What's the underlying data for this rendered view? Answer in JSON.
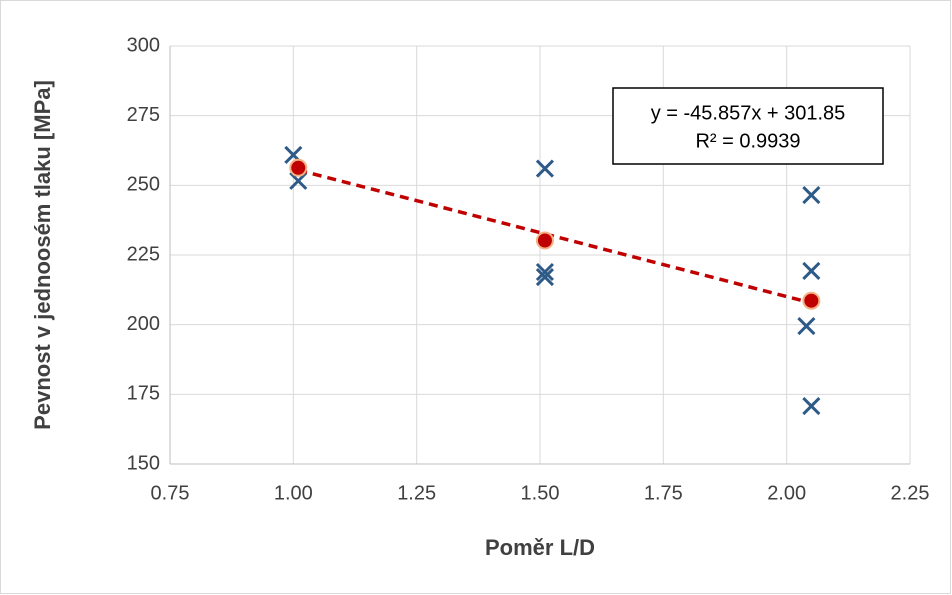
{
  "chart_data": {
    "type": "scatter",
    "xlabel": "Poměr L/D",
    "ylabel": "Pevnost v jednoosém tlaku [MPa]",
    "xlim": [
      0.75,
      2.25
    ],
    "xticks": [
      {
        "value": 0.75,
        "label": "0.75"
      },
      {
        "value": 1,
        "label": "1.00"
      },
      {
        "value": 1.25,
        "label": "1.25"
      },
      {
        "value": 1.5,
        "label": "1.50"
      },
      {
        "value": 1.75,
        "label": "1.75"
      },
      {
        "value": 2,
        "label": "2.00"
      },
      {
        "value": 2.25,
        "label": "2.25"
      }
    ],
    "ylim": [
      150,
      300
    ],
    "yticks": [
      150,
      175,
      200,
      225,
      250,
      275,
      300
    ],
    "grid": true,
    "series": [
      {
        "marker": "x",
        "color": "#2e5a88",
        "x": [
          1.0,
          1.01,
          1.51,
          1.51,
          1.51,
          2.05,
          2.05,
          2.04,
          2.05
        ],
        "values": [
          260.9,
          251.6,
          256.0,
          218.9,
          217.1,
          246.5,
          219.3,
          199.5,
          170.8
        ]
      },
      {
        "marker": "circle",
        "color": "#c00000",
        "edge": "#f4b183",
        "x": [
          1.01,
          1.51,
          2.05
        ],
        "values": [
          256.3,
          230.2,
          208.6
        ]
      }
    ],
    "trendline": {
      "color": "#c00000",
      "dashed": true,
      "x": [
        1.01,
        2.05
      ],
      "values": [
        255.5,
        207.8
      ]
    },
    "annotation": [
      "y = -45.857x + 301.85",
      "R² = 0.9939"
    ]
  }
}
